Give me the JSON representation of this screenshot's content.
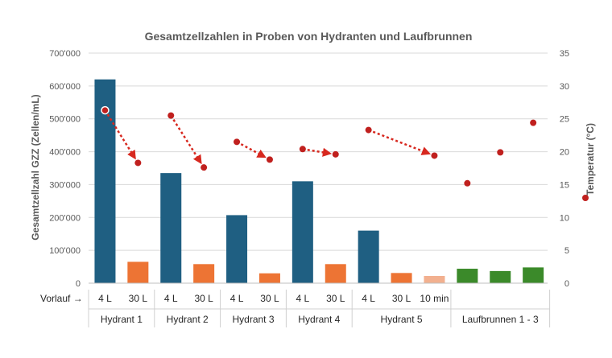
{
  "chart_data": {
    "type": "bar",
    "title": "Gesamtzellzahlen in Proben von Hydranten und Laufbrunnen",
    "ylabel": "Gesamtzellzahl GZZ (Zellen/mL)",
    "y2label": "Temperatur (°C)",
    "ylim": [
      0,
      700000
    ],
    "y2lim": [
      0,
      35
    ],
    "yticks": [
      "0",
      "100'000",
      "200'000",
      "300'000",
      "400'000",
      "500'000",
      "600'000",
      "700'000"
    ],
    "y2ticks": [
      "0",
      "5",
      "10",
      "15",
      "20",
      "25",
      "30",
      "35"
    ],
    "row_label": "Vorlauf →",
    "grid": true,
    "colors": {
      "small_volume": "#1f5f82",
      "large_volume": "#ed7434",
      "ten_min": "#f2b08f",
      "fountain": "#3b8a2a",
      "temperature": "#c0201e",
      "arrow": "#d7281f",
      "grid": "#d9d9d9"
    },
    "groups": [
      {
        "name": "Hydrant 1",
        "bars": [
          {
            "label": "4 L",
            "value": 620000,
            "kind": "small_volume",
            "temp": 26.3
          },
          {
            "label": "30 L",
            "value": 65000,
            "kind": "large_volume",
            "temp": 18.3
          }
        ]
      },
      {
        "name": "Hydrant 2",
        "bars": [
          {
            "label": "4 L",
            "value": 335000,
            "kind": "small_volume",
            "temp": 25.5
          },
          {
            "label": "30 L",
            "value": 58000,
            "kind": "large_volume",
            "temp": 17.6
          }
        ]
      },
      {
        "name": "Hydrant 3",
        "bars": [
          {
            "label": "4 L",
            "value": 207000,
            "kind": "small_volume",
            "temp": 21.5
          },
          {
            "label": "30 L",
            "value": 30000,
            "kind": "large_volume",
            "temp": 18.8
          }
        ]
      },
      {
        "name": "Hydrant 4",
        "bars": [
          {
            "label": "4 L",
            "value": 310000,
            "kind": "small_volume",
            "temp": 20.4
          },
          {
            "label": "30 L",
            "value": 58000,
            "kind": "large_volume",
            "temp": 19.6
          }
        ]
      },
      {
        "name": "Hydrant 5",
        "bars": [
          {
            "label": "4 L",
            "value": 160000,
            "kind": "small_volume",
            "temp": 23.3
          },
          {
            "label": "30 L",
            "value": 31000,
            "kind": "large_volume",
            "temp": null
          },
          {
            "label": "10 min",
            "value": 22000,
            "kind": "ten_min",
            "temp": 19.4
          }
        ]
      },
      {
        "name": "Laufbrunnen 1 - 3",
        "bars": [
          {
            "label": "",
            "value": 44000,
            "kind": "fountain",
            "temp": 15.2
          },
          {
            "label": "",
            "value": 37000,
            "kind": "fountain",
            "temp": 19.9
          },
          {
            "label": "",
            "value": 48000,
            "kind": "fountain",
            "temp": 24.4
          }
        ]
      }
    ],
    "arrows": [
      {
        "from": [
          0,
          0
        ],
        "to": [
          0,
          1
        ]
      },
      {
        "from": [
          1,
          0
        ],
        "to": [
          1,
          1
        ]
      },
      {
        "from": [
          2,
          0
        ],
        "to": [
          2,
          1
        ]
      },
      {
        "from": [
          3,
          0
        ],
        "to": [
          3,
          1
        ]
      },
      {
        "from": [
          4,
          0
        ],
        "to": [
          4,
          2
        ]
      }
    ]
  }
}
